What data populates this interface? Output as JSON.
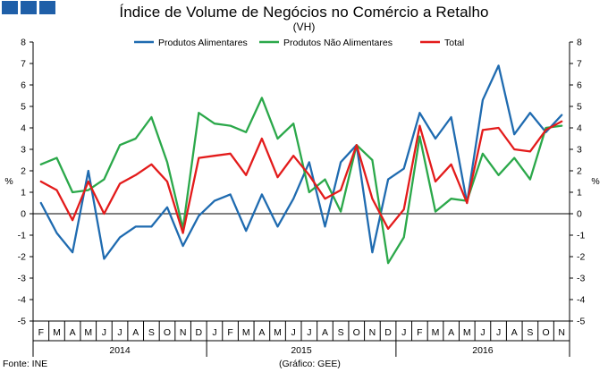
{
  "header": {
    "title": "Índice de Volume de Negócios no Comércio a Retalho",
    "subtitle": "(VH)"
  },
  "footer": {
    "source": "Fonte: INE",
    "credit": "(Gráfico: GEE)"
  },
  "colors": {
    "logo": "#1f5fa8",
    "alimentares": "#1f6bb0",
    "nao_alimentares": "#2ba84a",
    "total": "#e31b1b",
    "axis": "#000000"
  },
  "chart_data": {
    "type": "line",
    "title": "Índice de Volume de Negócios no Comércio a Retalho",
    "subtitle": "(VH)",
    "ylabel_left": "%",
    "ylabel_right": "%",
    "ylim": [
      -5,
      8
    ],
    "yticks": [
      -5,
      -4,
      -3,
      -2,
      -1,
      0,
      1,
      2,
      3,
      4,
      5,
      6,
      7,
      8
    ],
    "grid": false,
    "legend_position": "top",
    "categories": [
      "F",
      "M",
      "A",
      "M",
      "J",
      "J",
      "A",
      "S",
      "O",
      "N",
      "D",
      "J",
      "F",
      "M",
      "A",
      "M",
      "J",
      "J",
      "A",
      "S",
      "O",
      "N",
      "D",
      "J",
      "F",
      "M",
      "A",
      "M",
      "J",
      "J",
      "A",
      "S",
      "O",
      "N"
    ],
    "years": [
      {
        "label": "2014",
        "first_index": 0,
        "last_index": 10
      },
      {
        "label": "2015",
        "first_index": 11,
        "last_index": 22
      },
      {
        "label": "2016",
        "first_index": 23,
        "last_index": 33
      }
    ],
    "series": [
      {
        "name": "Produtos Alimentares",
        "color": "#1f6bb0",
        "values": [
          0.5,
          -0.9,
          -1.8,
          2.0,
          -2.1,
          -1.1,
          -0.6,
          -0.6,
          0.3,
          -1.5,
          -0.1,
          0.6,
          0.9,
          -0.8,
          0.9,
          -0.6,
          0.7,
          2.4,
          -0.6,
          2.4,
          3.2,
          -1.8,
          1.6,
          2.1,
          4.7,
          3.5,
          4.5,
          0.5,
          5.3,
          6.9,
          3.7,
          4.7,
          3.8,
          4.6
        ]
      },
      {
        "name": "Produtos Não Alimentares",
        "color": "#2ba84a",
        "values": [
          2.3,
          2.6,
          1.0,
          1.1,
          1.6,
          3.2,
          3.5,
          4.5,
          2.4,
          -0.7,
          4.7,
          4.2,
          4.1,
          3.8,
          5.4,
          3.5,
          4.2,
          1.0,
          1.6,
          0.1,
          3.2,
          2.5,
          -2.3,
          -1.1,
          3.6,
          0.1,
          0.7,
          0.6,
          2.8,
          1.8,
          2.6,
          1.6,
          4.0,
          4.1
        ]
      },
      {
        "name": "Total",
        "color": "#e31b1b",
        "values": [
          1.5,
          1.1,
          -0.3,
          1.5,
          0.0,
          1.4,
          1.8,
          2.3,
          1.5,
          -0.9,
          2.6,
          2.7,
          2.8,
          1.8,
          3.5,
          1.7,
          2.7,
          1.8,
          0.7,
          1.1,
          3.2,
          0.7,
          -0.7,
          0.2,
          4.1,
          1.5,
          2.3,
          0.5,
          3.9,
          4.0,
          3.0,
          2.9,
          3.9,
          4.3
        ]
      }
    ]
  }
}
